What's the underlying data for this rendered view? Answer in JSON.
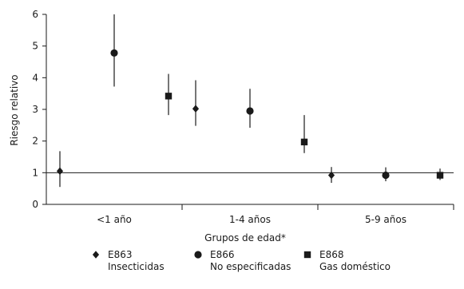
{
  "chart_data": {
    "type": "scatter",
    "title": "",
    "ylabel": "Riesgo relativo",
    "xlabel": "Grupos de edad*",
    "ylim": [
      0,
      6
    ],
    "yticks": [
      "0",
      "1",
      "2",
      "3",
      "4",
      "5",
      "6"
    ],
    "reference_line": 1,
    "grid": false,
    "legend_position": "bottom",
    "categories": [
      "<1 año",
      "1-4 años",
      "5-9 años"
    ],
    "series": [
      {
        "code": "E863",
        "name": "Insecticidas",
        "marker": "diamond",
        "values": [
          1.05,
          3.02,
          0.92
        ],
        "lower": [
          0.55,
          2.48,
          0.68
        ],
        "upper": [
          1.68,
          3.92,
          1.18
        ]
      },
      {
        "code": "E866",
        "name": "No especificadas",
        "marker": "circle",
        "values": [
          4.78,
          2.95,
          0.92
        ],
        "lower": [
          3.72,
          2.42,
          0.73
        ],
        "upper": [
          6.0,
          3.65,
          1.17
        ]
      },
      {
        "code": "E868",
        "name": "Gas doméstico",
        "marker": "square",
        "values": [
          3.42,
          1.97,
          0.92
        ],
        "lower": [
          2.82,
          1.62,
          0.77
        ],
        "upper": [
          4.12,
          2.82,
          1.13
        ]
      }
    ]
  }
}
